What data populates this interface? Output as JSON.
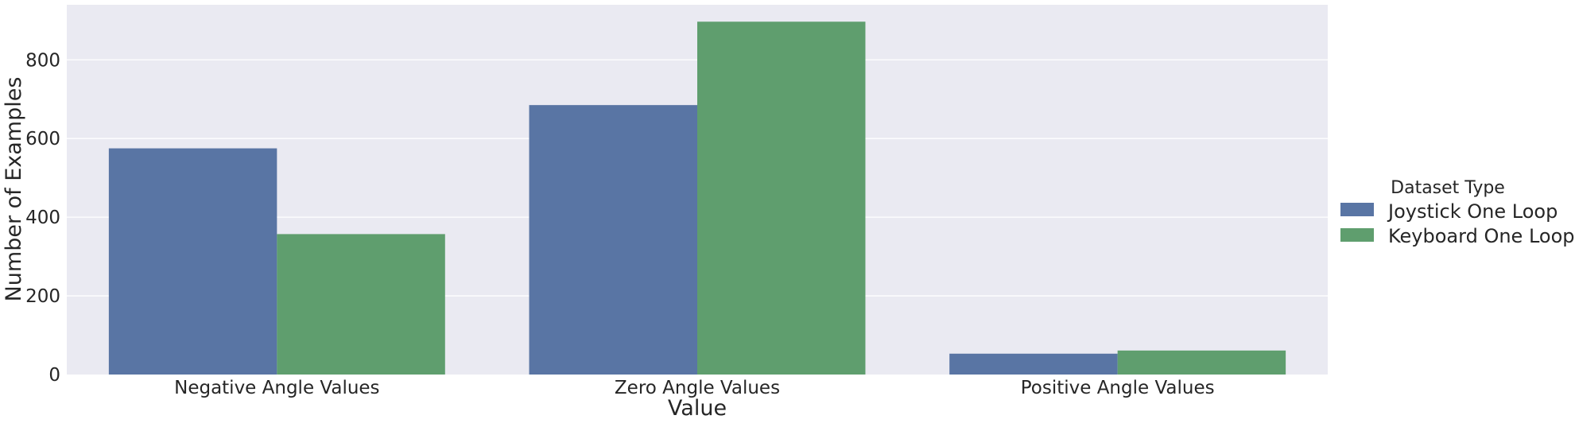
{
  "colors": {
    "plot_background": "#EAEAF2",
    "grid": "#FFFFFF",
    "series": [
      "#5975A4",
      "#5F9E6E"
    ]
  },
  "legend": {
    "title": "Dataset Type",
    "placement": "right"
  },
  "chart_data": {
    "type": "bar",
    "title": "",
    "xlabel": "Value",
    "ylabel": "Number of Examples",
    "categories": [
      "Negative Angle Values",
      "Zero Angle Values",
      "Positive Angle Values"
    ],
    "series": [
      {
        "name": "Joystick One Loop",
        "values": [
          575,
          685,
          53
        ]
      },
      {
        "name": "Keyboard One Loop",
        "values": [
          357,
          897,
          61
        ]
      }
    ],
    "ylim": [
      0,
      940
    ],
    "yticks": [
      0,
      200,
      400,
      600,
      800
    ],
    "grid": true,
    "grid_axis": "y"
  }
}
